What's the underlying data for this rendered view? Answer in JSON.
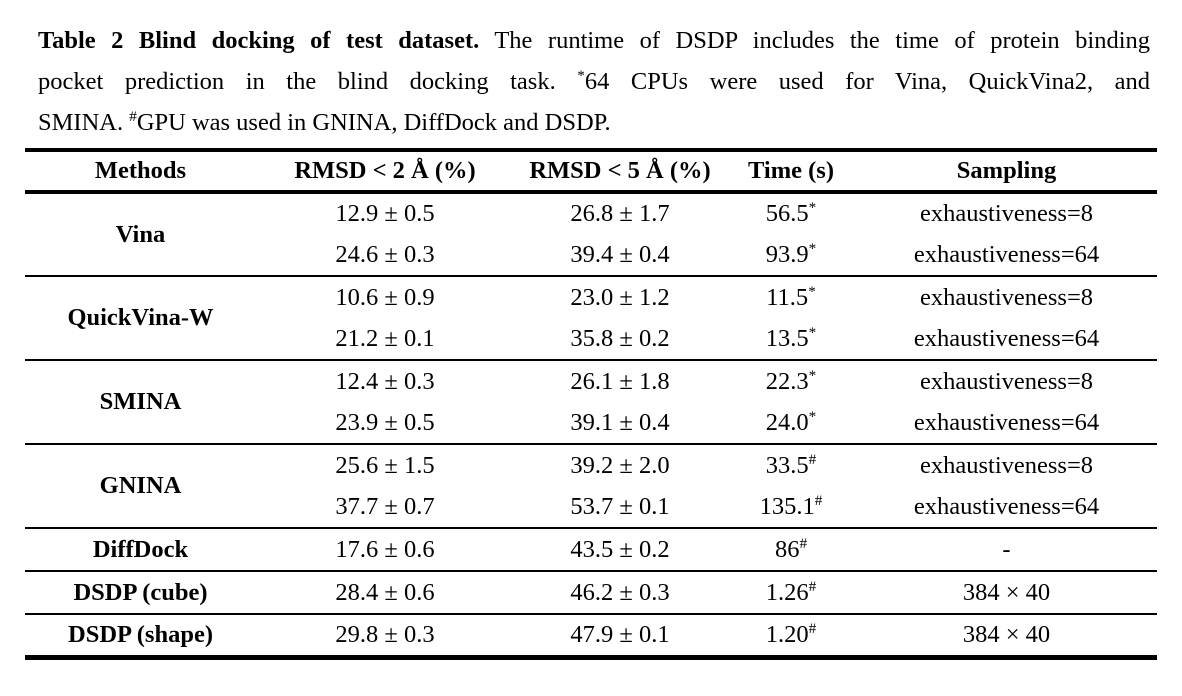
{
  "caption": {
    "line1_bold": "Table 2 Blind docking of test dataset.",
    "line1_rest": " The runtime of DSDP includes the time of protein binding",
    "line2_pre": "pocket prediction in the blind docking task. ",
    "line2_sup": "*",
    "line2_post": "64 CPUs were used for Vina, QuickVina2, and",
    "line3_pre": "SMINA. ",
    "line3_sup": "#",
    "line3_post": "GPU was used in GNINA, DiffDock and DSDP."
  },
  "table": {
    "headers": {
      "methods": "Methods",
      "rmsd2": "RMSD < 2 Å (%)",
      "rmsd5": "RMSD < 5 Å (%)",
      "time": "Time (s)",
      "sampling": "Sampling"
    },
    "groups": [
      {
        "method": "Vina",
        "rows": [
          {
            "rmsd2": "12.9 ± 0.5",
            "rmsd5": "26.8 ± 1.7",
            "time": "56.5",
            "time_sup": "*",
            "sampling": "exhaustiveness=8"
          },
          {
            "rmsd2": "24.6 ± 0.3",
            "rmsd5": "39.4 ± 0.4",
            "time": "93.9",
            "time_sup": "*",
            "sampling": "exhaustiveness=64"
          }
        ]
      },
      {
        "method": "QuickVina-W",
        "rows": [
          {
            "rmsd2": "10.6 ± 0.9",
            "rmsd5": "23.0 ± 1.2",
            "time": "11.5",
            "time_sup": "*",
            "sampling": "exhaustiveness=8"
          },
          {
            "rmsd2": "21.2 ± 0.1",
            "rmsd5": "35.8 ± 0.2",
            "time": "13.5",
            "time_sup": "*",
            "sampling": "exhaustiveness=64"
          }
        ]
      },
      {
        "method": "SMINA",
        "rows": [
          {
            "rmsd2": "12.4 ± 0.3",
            "rmsd5": "26.1 ± 1.8",
            "time": "22.3",
            "time_sup": "*",
            "sampling": "exhaustiveness=8"
          },
          {
            "rmsd2": "23.9 ± 0.5",
            "rmsd5": "39.1 ± 0.4",
            "time": "24.0",
            "time_sup": "*",
            "sampling": "exhaustiveness=64"
          }
        ]
      },
      {
        "method": "GNINA",
        "rows": [
          {
            "rmsd2": "25.6 ± 1.5",
            "rmsd5": "39.2 ± 2.0",
            "time": "33.5",
            "time_sup": "#",
            "sampling": "exhaustiveness=8"
          },
          {
            "rmsd2": "37.7 ± 0.7",
            "rmsd5": "53.7 ± 0.1",
            "time": "135.1",
            "time_sup": "#",
            "sampling": "exhaustiveness=64"
          }
        ]
      },
      {
        "method": "DiffDock",
        "rows": [
          {
            "rmsd2": "17.6 ± 0.6",
            "rmsd5": "43.5 ± 0.2",
            "time": "86",
            "time_sup": "#",
            "sampling": "-"
          }
        ]
      },
      {
        "method": "DSDP (cube)",
        "rows": [
          {
            "rmsd2": "28.4 ± 0.6",
            "rmsd5": "46.2 ± 0.3",
            "time": "1.26",
            "time_sup": "#",
            "sampling": "384 × 40"
          }
        ]
      },
      {
        "method": "DSDP (shape)",
        "rows": [
          {
            "rmsd2": "29.8 ± 0.3",
            "rmsd5": "47.9 ± 0.1",
            "time": "1.20",
            "time_sup": "#",
            "sampling": "384 × 40"
          }
        ]
      }
    ],
    "colors": {
      "text": "#000000",
      "background": "#ffffff",
      "rule": "#000000"
    }
  }
}
